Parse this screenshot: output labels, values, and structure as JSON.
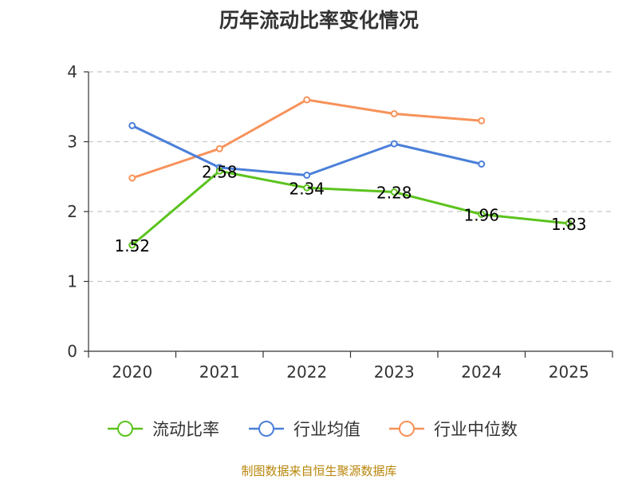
{
  "chart_data": {
    "type": "line",
    "title": "历年流动比率变化情况",
    "categories": [
      "2020",
      "2021",
      "2022",
      "2023",
      "2024",
      "2025"
    ],
    "ylim": [
      0,
      4
    ],
    "yticks": [
      "0",
      "1",
      "2",
      "3",
      "4"
    ],
    "grid": true,
    "legend_position": "bottom",
    "series": [
      {
        "name": "流动比率",
        "color": "#5cc31e",
        "values": [
          1.52,
          2.58,
          2.34,
          2.28,
          1.96,
          1.83
        ],
        "labels": [
          "1.52",
          "2.58",
          "2.34",
          "2.28",
          "1.96",
          "1.83"
        ],
        "show_labels": true
      },
      {
        "name": "行业均值",
        "color": "#4b7fd9",
        "values": [
          3.23,
          2.63,
          2.52,
          2.97,
          2.68,
          null
        ],
        "show_labels": false
      },
      {
        "name": "行业中位数",
        "color": "#f7925a",
        "values": [
          2.48,
          2.9,
          3.6,
          3.4,
          3.3,
          null
        ],
        "show_labels": false
      }
    ]
  },
  "source": "制图数据来自恒生聚源数据库"
}
